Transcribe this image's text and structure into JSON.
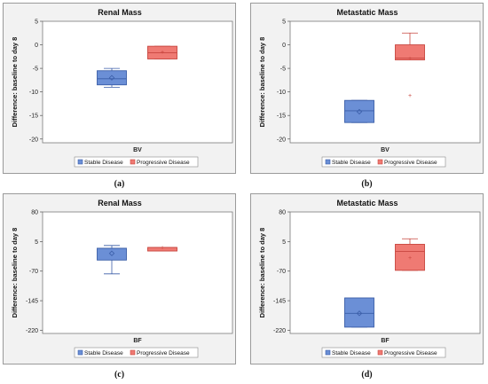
{
  "captions": [
    "(a)",
    "(b)",
    "(c)",
    "(d)"
  ],
  "colors": {
    "stable": "#6b8fd6",
    "stable_edge": "#3b5ea8",
    "progressive": "#ef7a73",
    "progressive_edge": "#c8463f",
    "panel_bg": "#f2f2f2"
  },
  "chart_data": [
    {
      "type": "boxplot",
      "title": "Renal Mass",
      "ylabel": "Difference: baseline to day 8",
      "categories": [
        "BV"
      ],
      "yticks": [
        5,
        0,
        -5,
        -10,
        -15,
        -20
      ],
      "ylim": [
        -20.8,
        5
      ],
      "legend": [
        "Stable Disease",
        "Progressive Disease"
      ],
      "legend_position": "bottom",
      "series": [
        {
          "name": "Stable Disease",
          "box": {
            "min": -9.0,
            "q1": -8.5,
            "median": -7.2,
            "mean": -7.0,
            "q3": -5.5,
            "max": -5.0
          },
          "outliers": []
        },
        {
          "name": "Progressive Disease",
          "box": {
            "min": -3.0,
            "q1": -3.0,
            "median": -1.7,
            "mean": -1.5,
            "q3": -0.3,
            "max": -0.3
          },
          "outliers": []
        }
      ]
    },
    {
      "type": "boxplot",
      "title": "Metastatic Mass",
      "ylabel": "Difference: baseline to day 8",
      "categories": [
        "BV"
      ],
      "yticks": [
        5,
        0,
        -5,
        -10,
        -15,
        -20
      ],
      "ylim": [
        -20.8,
        5
      ],
      "legend": [
        "Stable Disease",
        "Progressive Disease"
      ],
      "legend_position": "bottom",
      "series": [
        {
          "name": "Stable Disease",
          "box": {
            "min": -16.5,
            "q1": -16.5,
            "median": -14.0,
            "mean": -14.2,
            "q3": -11.8,
            "max": -11.8
          },
          "outliers": []
        },
        {
          "name": "Progressive Disease",
          "box": {
            "min": -3.2,
            "q1": -3.2,
            "median": -2.8,
            "mean": -2.8,
            "q3": 0.0,
            "max": 2.5
          },
          "outliers": [
            -10.7
          ]
        }
      ]
    },
    {
      "type": "boxplot",
      "title": "Renal Mass",
      "ylabel": "Difference: baseline to day 8",
      "categories": [
        "BF"
      ],
      "yticks": [
        80,
        5,
        -70,
        -145,
        -220
      ],
      "ylim": [
        -228,
        80
      ],
      "legend": [
        "Stable Disease",
        "Progressive Disease"
      ],
      "legend_position": "bottom",
      "series": [
        {
          "name": "Stable Disease",
          "box": {
            "min": -77,
            "q1": -42,
            "median": -12,
            "mean": -25,
            "q3": -12,
            "max": -5
          },
          "outliers": []
        },
        {
          "name": "Progressive Disease",
          "box": {
            "min": -19,
            "q1": -19,
            "median": -10,
            "mean": -10,
            "q3": -10,
            "max": -10
          },
          "outliers": []
        }
      ]
    },
    {
      "type": "boxplot",
      "title": "Metastatic Mass",
      "ylabel": "Difference: baseline to day 8",
      "categories": [
        "BF"
      ],
      "yticks": [
        80,
        5,
        -70,
        -145,
        -220
      ],
      "ylim": [
        -228,
        80
      ],
      "legend": [
        "Stable Disease",
        "Progressive Disease"
      ],
      "legend_position": "bottom",
      "series": [
        {
          "name": "Stable Disease",
          "box": {
            "min": -212,
            "q1": -212,
            "median": -177,
            "mean": -177,
            "q3": -138,
            "max": -138
          },
          "outliers": []
        },
        {
          "name": "Progressive Disease",
          "box": {
            "min": -68,
            "q1": -68,
            "median": -20,
            "mean": -36,
            "q3": -2,
            "max": 12
          },
          "outliers": []
        }
      ]
    }
  ]
}
